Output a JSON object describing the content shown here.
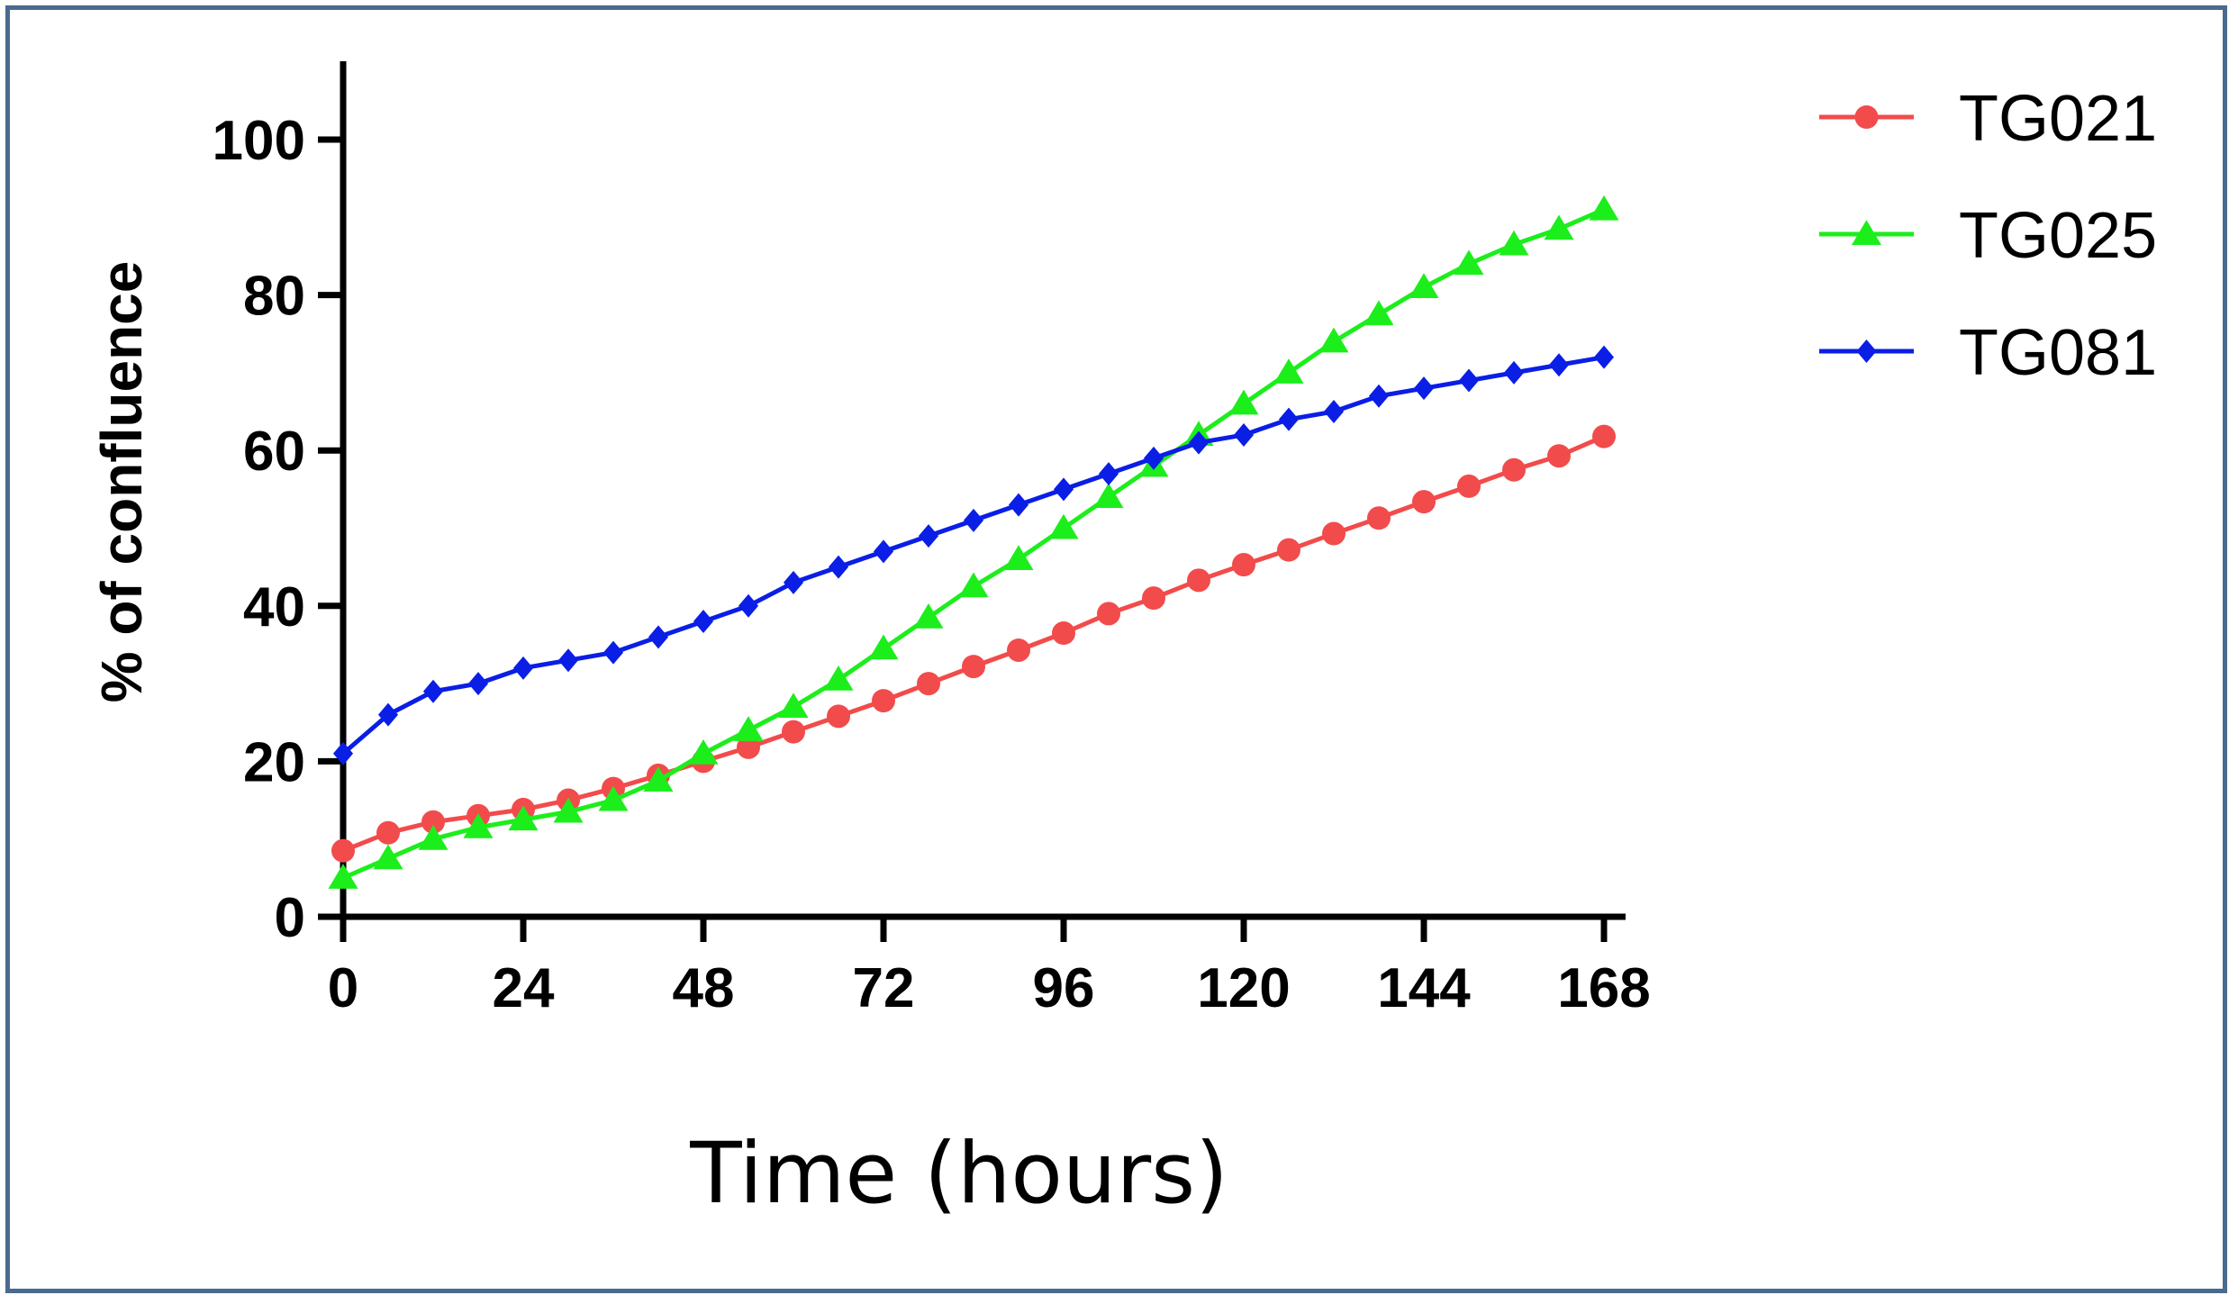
{
  "chart_data": {
    "type": "line",
    "title": "",
    "xlabel": "Time (hours)",
    "ylabel": "% of confluence",
    "xlim": [
      0,
      168
    ],
    "ylim": [
      0,
      110
    ],
    "xticks": [
      "0",
      "24",
      "48",
      "72",
      "96",
      "120",
      "144",
      "168"
    ],
    "yticks": [
      "0",
      "20",
      "40",
      "60",
      "80",
      "100"
    ],
    "legend_position": "top-right",
    "grid": false,
    "x": [
      0,
      6,
      12,
      18,
      24,
      30,
      36,
      42,
      48,
      54,
      60,
      66,
      72,
      78,
      84,
      90,
      96,
      102,
      108,
      114,
      120,
      126,
      132,
      138,
      144,
      150,
      156,
      162,
      168
    ],
    "series": [
      {
        "name": "TG021",
        "color": "#f24b4b",
        "marker": "circle",
        "values": [
          8.5,
          10.8,
          12.2,
          13.0,
          13.8,
          15.0,
          16.5,
          18.2,
          20.0,
          21.8,
          23.8,
          25.8,
          27.8,
          30.0,
          32.2,
          34.3,
          36.5,
          39.0,
          41.0,
          43.3,
          45.3,
          47.2,
          49.3,
          51.3,
          53.4,
          55.4,
          57.5,
          59.3,
          61.8
        ]
      },
      {
        "name": "TG025",
        "color": "#1cee1c",
        "marker": "triangle",
        "values": [
          5.0,
          7.5,
          10.0,
          11.5,
          12.5,
          13.5,
          15.0,
          17.5,
          21.0,
          24.0,
          27.0,
          30.5,
          34.5,
          38.5,
          42.5,
          46.0,
          50.0,
          54.0,
          58.0,
          62.0,
          66.0,
          70.0,
          74.0,
          77.5,
          81.0,
          84.0,
          86.5,
          88.5,
          91.0
        ]
      },
      {
        "name": "TG081",
        "color": "#0a1ee6",
        "marker": "diamond",
        "values": [
          21.0,
          26.0,
          29.0,
          30.0,
          32.0,
          33.0,
          34.0,
          36.0,
          38.0,
          40.0,
          43.0,
          45.0,
          47.0,
          49.0,
          51.0,
          53.0,
          55.0,
          57.0,
          59.0,
          61.0,
          62.0,
          64.0,
          65.0,
          67.0,
          68.0,
          69.0,
          70.0,
          71.0,
          72.0
        ]
      }
    ]
  }
}
